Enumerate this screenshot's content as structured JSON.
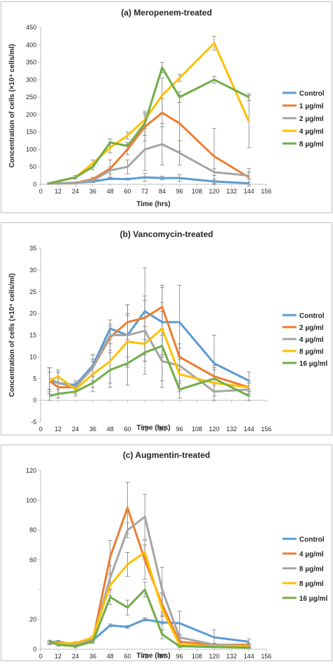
{
  "chart_data": [
    {
      "type": "line",
      "title": "(a) Meropenem-treated",
      "xlabel": "Time (hrs)",
      "ylabel": "Concentration of cells (×10⁴ cells/ml)",
      "xlim": [
        0,
        156
      ],
      "ylim": [
        0,
        450
      ],
      "xticks": [
        "0",
        "12",
        "24",
        "36",
        "48",
        "60",
        "72",
        "84",
        "96",
        "108",
        "120",
        "132",
        "144",
        "156"
      ],
      "yticks": [
        "0",
        "50",
        "100",
        "150",
        "200",
        "250",
        "300",
        "350",
        "400",
        "450"
      ],
      "grid": false,
      "legend_position": "right",
      "x": [
        6,
        24,
        36,
        48,
        60,
        72,
        84,
        96,
        120,
        144
      ],
      "series": [
        {
          "name": "Control",
          "color": "#5B9BD5",
          "values": [
            2,
            4,
            8,
            16,
            15,
            20,
            18,
            18,
            8,
            3
          ],
          "errors": [
            2,
            2,
            3,
            3,
            3,
            12,
            5,
            10,
            6,
            3
          ]
        },
        {
          "name": "1 µg/ml",
          "color": "#ED7D31",
          "values": [
            2,
            4,
            15,
            45,
            100,
            165,
            205,
            175,
            80,
            20
          ],
          "errors": [
            2,
            2,
            5,
            25,
            15,
            40,
            40,
            80,
            80,
            25
          ]
        },
        {
          "name": "2 µg/ml",
          "color": "#A5A5A5",
          "values": [
            2,
            5,
            10,
            40,
            50,
            100,
            115,
            90,
            35,
            25
          ],
          "errors": [
            2,
            2,
            5,
            10,
            20,
            60,
            60,
            35,
            10,
            10
          ]
        },
        {
          "name": "4 µg/ml",
          "color": "#FFC000",
          "values": [
            3,
            20,
            60,
            105,
            140,
            185,
            255,
            305,
            405,
            180
          ],
          "errors": [
            2,
            5,
            10,
            15,
            10,
            15,
            50,
            10,
            20,
            75
          ]
        },
        {
          "name": "8 µg/ml",
          "color": "#70AD47",
          "values": [
            3,
            20,
            50,
            120,
            110,
            175,
            335,
            250,
            300,
            250
          ],
          "errors": [
            2,
            5,
            8,
            10,
            10,
            35,
            15,
            15,
            10,
            10
          ]
        }
      ]
    },
    {
      "type": "line",
      "title": "(b) Vancomycin-treated",
      "xlabel": "Time (hrs)",
      "ylabel": "Concentration of cells (×10⁴ cells/ml)",
      "xlim": [
        0,
        156
      ],
      "ylim": [
        -5,
        35
      ],
      "xticks": [
        "0",
        "12",
        "24",
        "36",
        "48",
        "60",
        "72",
        "84",
        "96",
        "108",
        "120",
        "132",
        "144",
        "156"
      ],
      "yticks": [
        "-5",
        "0",
        "5",
        "10",
        "15",
        "20",
        "25",
        "30",
        "35"
      ],
      "grid": false,
      "legend_position": "right",
      "x": [
        6,
        12,
        24,
        36,
        48,
        60,
        72,
        84,
        96,
        120,
        144
      ],
      "series": [
        {
          "name": "Control",
          "color": "#5B9BD5",
          "values": [
            4.5,
            4,
            3.5,
            8,
            16.5,
            15,
            20.5,
            18,
            18,
            8.5,
            4.5
          ],
          "errors": [
            3,
            2.5,
            1,
            2.5,
            2,
            7,
            10,
            8,
            8.5,
            6.5,
            2
          ]
        },
        {
          "name": "2 µg/ml",
          "color": "#ED7D31",
          "values": [
            4.5,
            3,
            3,
            7.5,
            14.5,
            18,
            19,
            21.5,
            10,
            5.5,
            3
          ],
          "errors": [
            3,
            2.5,
            1,
            2,
            3,
            4,
            5,
            5,
            3,
            2,
            1
          ]
        },
        {
          "name": "4 µg/ml",
          "color": "#A5A5A5",
          "values": [
            5,
            4,
            3,
            7.5,
            15,
            15,
            16,
            9,
            8,
            2,
            2.5
          ],
          "errors": [
            2.5,
            2.5,
            1,
            3,
            2,
            5,
            7,
            6,
            4,
            2,
            1.5
          ]
        },
        {
          "name": "8 µg/ml",
          "color": "#FFC000",
          "values": [
            4.5,
            5.5,
            2.5,
            6,
            9,
            13.5,
            13,
            16.5,
            6,
            4,
            3
          ],
          "errors": [
            2,
            1.5,
            1,
            3,
            5,
            6,
            4,
            6,
            4,
            3,
            1.5
          ]
        },
        {
          "name": "16 µg/ml",
          "color": "#70AD47",
          "values": [
            1,
            1.5,
            2,
            4,
            7,
            8.5,
            11,
            12.5,
            2.5,
            5,
            1
          ],
          "errors": [
            1,
            1,
            1,
            2,
            4,
            5,
            5,
            8,
            2,
            3,
            1
          ]
        }
      ]
    },
    {
      "type": "line",
      "title": "(c) Augmentin-treated",
      "xlabel": "Time (hrs)",
      "ylabel": "",
      "xlim": [
        0,
        156
      ],
      "ylim": [
        0,
        120
      ],
      "xticks": [
        "0",
        "12",
        "24",
        "36",
        "48",
        "60",
        "72",
        "84",
        "96",
        "108",
        "120",
        "132",
        "144",
        "156"
      ],
      "yticks": [
        "0",
        "20",
        "40",
        "60",
        "80",
        "100",
        "120"
      ],
      "hidden_yticks": [
        "40"
      ],
      "grid": false,
      "legend_position": "right",
      "x": [
        6,
        12,
        24,
        36,
        48,
        60,
        72,
        84,
        96,
        120,
        144
      ],
      "series": [
        {
          "name": "Control",
          "color": "#5B9BD5",
          "values": [
            5,
            5,
            3,
            6,
            16,
            15,
            20,
            18,
            17.5,
            8,
            5
          ],
          "errors": [
            1,
            1,
            1,
            1,
            1,
            1,
            1,
            5,
            8,
            5,
            2
          ]
        },
        {
          "name": "4 µg/ml",
          "color": "#ED7D31",
          "values": [
            4,
            4,
            3,
            6,
            62,
            95,
            60,
            30,
            5,
            3,
            3
          ],
          "errors": [
            1,
            1,
            1,
            1,
            11,
            17,
            13,
            8,
            2,
            1,
            1
          ]
        },
        {
          "name": "8 µg/ml",
          "color": "#A5A5A5",
          "values": [
            4,
            4,
            3,
            7,
            48,
            80,
            89,
            40,
            8,
            3,
            2
          ],
          "errors": [
            1,
            1,
            1,
            1,
            8,
            5,
            15,
            15,
            2,
            1,
            1
          ]
        },
        {
          "name": "8 µg/ml",
          "color": "#FFC000",
          "values": [
            5,
            4,
            4,
            8,
            43,
            57,
            65,
            27,
            3,
            2,
            2
          ],
          "errors": [
            1,
            1,
            1,
            1,
            7,
            8,
            5,
            10,
            1,
            1,
            1
          ]
        },
        {
          "name": "16 µg/ml",
          "color": "#70AD47",
          "values": [
            5,
            3,
            2,
            5,
            35,
            28,
            40,
            10,
            2,
            1.5,
            1
          ],
          "errors": [
            1,
            1,
            1,
            1,
            5,
            5,
            5,
            3,
            1,
            0.5,
            0.5
          ]
        }
      ]
    }
  ]
}
